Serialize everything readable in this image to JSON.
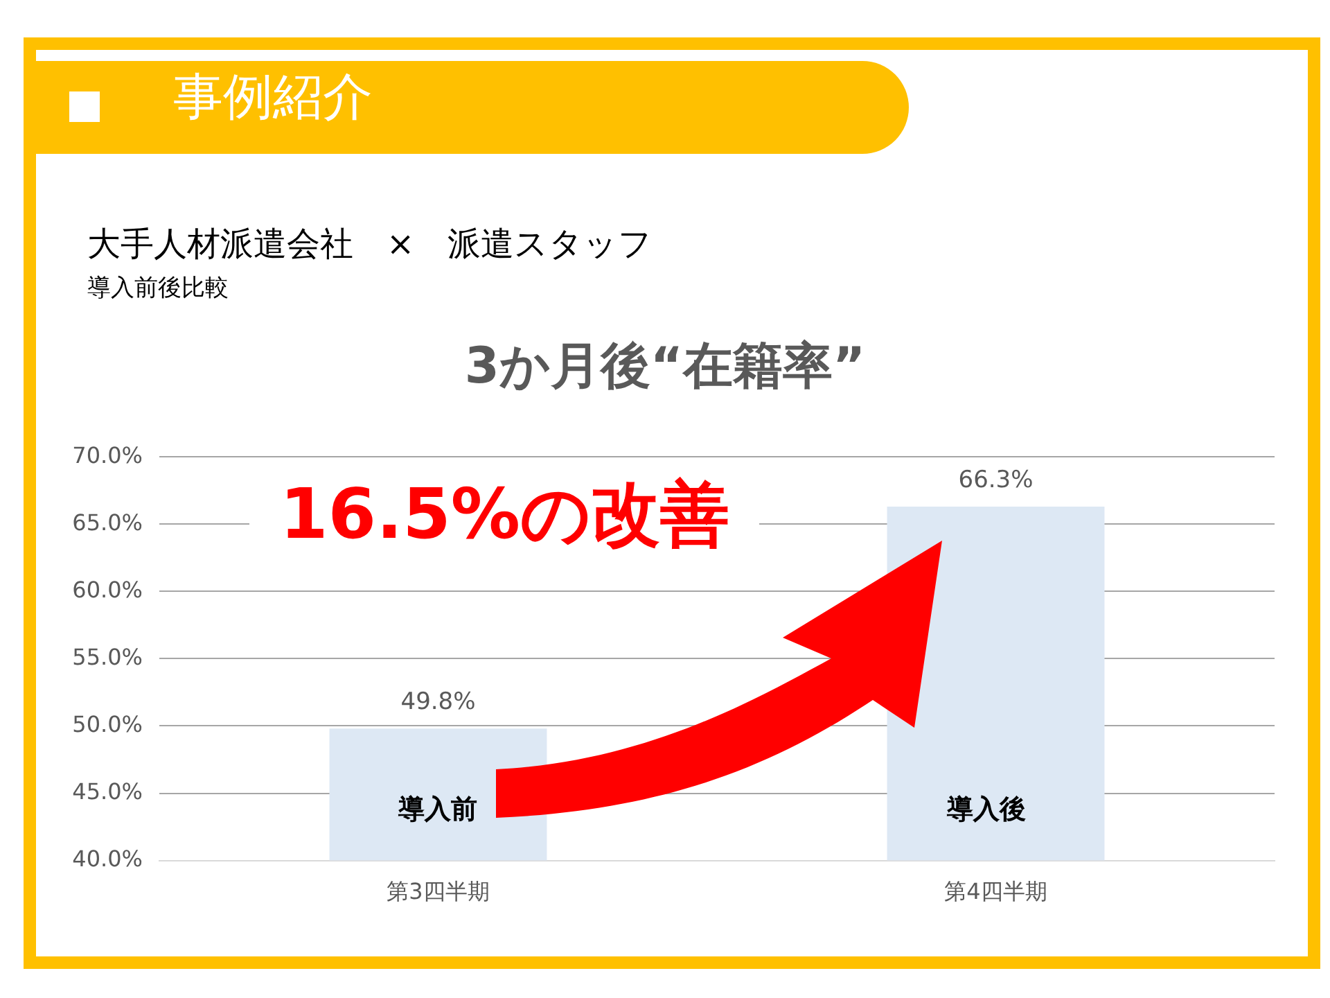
{
  "chart_data": {
    "type": "bar",
    "title": "3か月後“在籍率”",
    "categories": [
      "第3四半期",
      "第4四半期"
    ],
    "values": [
      49.8,
      66.3
    ],
    "color": "#dde8f4",
    "value_labels": [
      "49.8%",
      "66.3%"
    ],
    "ylim": [
      40,
      70
    ],
    "yticks": [
      {
        "value": 40,
        "label": "40.0%"
      },
      {
        "value": 45,
        "label": "45.0%"
      },
      {
        "value": 50,
        "label": "50.0%"
      },
      {
        "value": 55,
        "label": "55.0%"
      },
      {
        "value": 60,
        "label": "60.0%"
      },
      {
        "value": 65,
        "label": "65.0%"
      },
      {
        "value": 70,
        "label": "70.0%"
      }
    ],
    "grid": "y",
    "annotations": [
      "事例紹介",
      "大手人材派遣会社　×　派遣スタッフ",
      "導入前後比較",
      "16.5%の改善",
      "導入前",
      "導入後"
    ]
  }
}
